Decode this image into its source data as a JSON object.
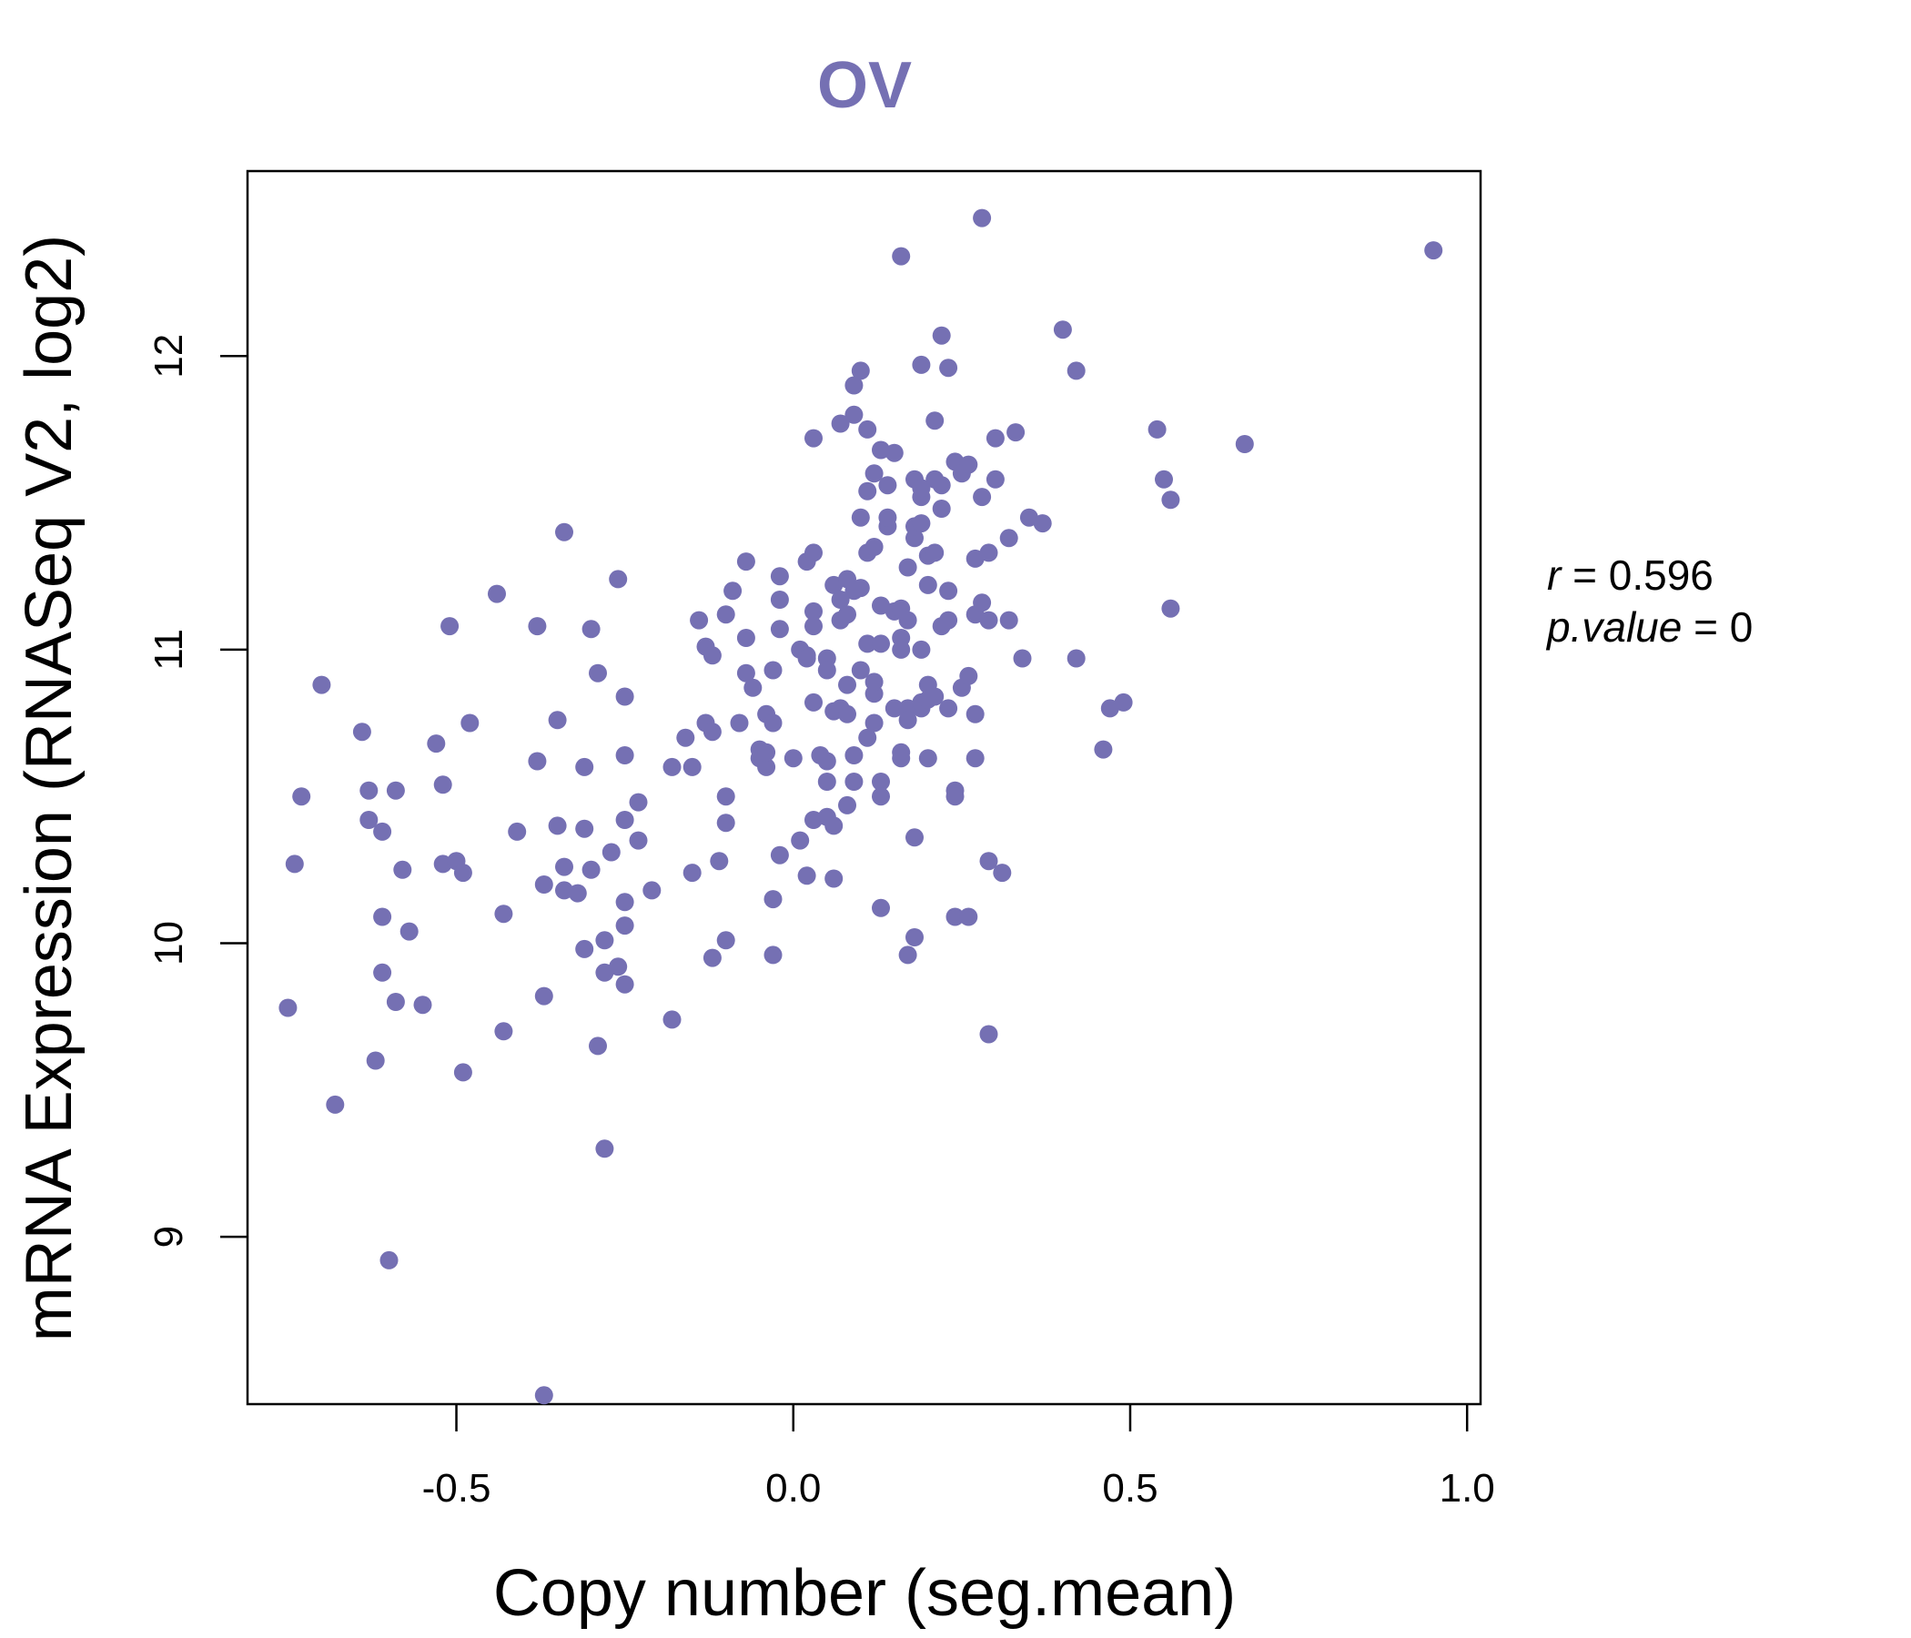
{
  "colors": {
    "accent": "#7570B3",
    "axis": "#000000",
    "background": "#ffffff"
  },
  "stats": {
    "r_label": "r",
    "r_value": "0.596",
    "p_label": "p.value",
    "p_value": "0"
  },
  "chart_data": {
    "type": "scatter",
    "title": "OV",
    "xlabel": "Copy number (seg.mean)",
    "ylabel": "mRNA Expression (RNASeq V2, log2)",
    "xlim": [
      -0.81,
      1.02
    ],
    "ylim": [
      8.43,
      12.63
    ],
    "xticks": [
      -0.5,
      0.0,
      0.5,
      1.0
    ],
    "xtick_labels": [
      "-0.5",
      "0.0",
      "0.5",
      "1.0"
    ],
    "yticks": [
      9,
      10,
      11,
      12
    ],
    "ytick_labels": [
      "9",
      "10",
      "11",
      "12"
    ],
    "grid": false,
    "legend": "none",
    "points": [
      [
        -0.75,
        9.78
      ],
      [
        -0.74,
        10.27
      ],
      [
        -0.73,
        10.5
      ],
      [
        -0.7,
        10.88
      ],
      [
        -0.68,
        9.45
      ],
      [
        -0.64,
        10.72
      ],
      [
        -0.63,
        10.52
      ],
      [
        -0.63,
        10.42
      ],
      [
        -0.62,
        9.6
      ],
      [
        -0.61,
        10.38
      ],
      [
        -0.61,
        10.09
      ],
      [
        -0.61,
        9.9
      ],
      [
        -0.6,
        8.92
      ],
      [
        -0.59,
        9.8
      ],
      [
        -0.59,
        10.52
      ],
      [
        -0.58,
        10.25
      ],
      [
        -0.57,
        10.04
      ],
      [
        -0.55,
        9.79
      ],
      [
        -0.53,
        10.68
      ],
      [
        -0.52,
        10.54
      ],
      [
        -0.52,
        10.27
      ],
      [
        -0.51,
        11.08
      ],
      [
        -0.5,
        10.28
      ],
      [
        -0.49,
        9.56
      ],
      [
        -0.49,
        10.24
      ],
      [
        -0.48,
        10.75
      ],
      [
        -0.44,
        11.19
      ],
      [
        -0.43,
        10.1
      ],
      [
        -0.43,
        9.7
      ],
      [
        -0.41,
        10.38
      ],
      [
        -0.38,
        11.08
      ],
      [
        -0.38,
        10.62
      ],
      [
        -0.37,
        10.2
      ],
      [
        -0.37,
        9.82
      ],
      [
        -0.37,
        8.46
      ],
      [
        -0.35,
        10.4
      ],
      [
        -0.35,
        10.76
      ],
      [
        -0.34,
        10.18
      ],
      [
        -0.34,
        10.26
      ],
      [
        -0.34,
        11.4
      ],
      [
        -0.32,
        10.17
      ],
      [
        -0.31,
        10.39
      ],
      [
        -0.31,
        10.6
      ],
      [
        -0.31,
        9.98
      ],
      [
        -0.3,
        11.07
      ],
      [
        -0.3,
        10.25
      ],
      [
        -0.29,
        9.65
      ],
      [
        -0.29,
        10.92
      ],
      [
        -0.28,
        9.9
      ],
      [
        -0.28,
        10.01
      ],
      [
        -0.28,
        9.3
      ],
      [
        -0.27,
        10.31
      ],
      [
        -0.26,
        11.24
      ],
      [
        -0.26,
        9.92
      ],
      [
        -0.25,
        10.64
      ],
      [
        -0.25,
        10.84
      ],
      [
        -0.25,
        10.14
      ],
      [
        -0.25,
        10.06
      ],
      [
        -0.25,
        9.86
      ],
      [
        -0.25,
        10.42
      ],
      [
        -0.23,
        10.48
      ],
      [
        -0.23,
        10.35
      ],
      [
        -0.21,
        10.18
      ],
      [
        -0.18,
        10.6
      ],
      [
        -0.18,
        9.74
      ],
      [
        -0.16,
        10.7
      ],
      [
        -0.15,
        10.24
      ],
      [
        -0.15,
        10.6
      ],
      [
        -0.14,
        11.1
      ],
      [
        -0.13,
        10.75
      ],
      [
        -0.13,
        11.01
      ],
      [
        -0.12,
        10.98
      ],
      [
        -0.12,
        10.72
      ],
      [
        -0.12,
        9.95
      ],
      [
        -0.11,
        10.28
      ],
      [
        -0.1,
        10.5
      ],
      [
        -0.1,
        10.41
      ],
      [
        -0.1,
        10.01
      ],
      [
        -0.1,
        11.12
      ],
      [
        -0.09,
        11.2
      ],
      [
        -0.08,
        10.75
      ],
      [
        -0.07,
        11.3
      ],
      [
        -0.07,
        10.92
      ],
      [
        -0.07,
        11.04
      ],
      [
        -0.06,
        10.87
      ],
      [
        -0.05,
        10.63
      ],
      [
        -0.05,
        10.66
      ],
      [
        -0.04,
        10.6
      ],
      [
        -0.04,
        10.78
      ],
      [
        -0.04,
        10.65
      ],
      [
        -0.03,
        10.93
      ],
      [
        -0.03,
        10.15
      ],
      [
        -0.03,
        10.75
      ],
      [
        -0.03,
        9.96
      ],
      [
        -0.02,
        10.3
      ],
      [
        -0.02,
        11.07
      ],
      [
        -0.02,
        11.17
      ],
      [
        -0.02,
        11.25
      ],
      [
        0.0,
        10.63
      ],
      [
        0.01,
        10.35
      ],
      [
        0.01,
        11.0
      ],
      [
        0.02,
        10.23
      ],
      [
        0.02,
        10.98
      ],
      [
        0.02,
        10.97
      ],
      [
        0.02,
        11.3
      ],
      [
        0.03,
        11.33
      ],
      [
        0.03,
        11.13
      ],
      [
        0.03,
        11.08
      ],
      [
        0.03,
        11.72
      ],
      [
        0.03,
        10.42
      ],
      [
        0.03,
        10.82
      ],
      [
        0.04,
        10.64
      ],
      [
        0.05,
        10.43
      ],
      [
        0.05,
        10.62
      ],
      [
        0.05,
        10.97
      ],
      [
        0.05,
        10.55
      ],
      [
        0.05,
        10.93
      ],
      [
        0.06,
        11.22
      ],
      [
        0.06,
        10.4
      ],
      [
        0.06,
        10.79
      ],
      [
        0.06,
        10.22
      ],
      [
        0.07,
        11.17
      ],
      [
        0.07,
        11.1
      ],
      [
        0.07,
        10.8
      ],
      [
        0.07,
        11.77
      ],
      [
        0.08,
        11.24
      ],
      [
        0.08,
        10.88
      ],
      [
        0.08,
        10.78
      ],
      [
        0.08,
        10.47
      ],
      [
        0.08,
        11.12
      ],
      [
        0.09,
        11.2
      ],
      [
        0.09,
        11.8
      ],
      [
        0.09,
        11.9
      ],
      [
        0.09,
        10.64
      ],
      [
        0.09,
        10.55
      ],
      [
        0.1,
        11.95
      ],
      [
        0.1,
        11.21
      ],
      [
        0.1,
        11.45
      ],
      [
        0.1,
        10.93
      ],
      [
        0.11,
        11.02
      ],
      [
        0.11,
        10.7
      ],
      [
        0.11,
        11.54
      ],
      [
        0.11,
        11.75
      ],
      [
        0.11,
        11.33
      ],
      [
        0.12,
        10.85
      ],
      [
        0.12,
        10.75
      ],
      [
        0.12,
        11.35
      ],
      [
        0.12,
        10.89
      ],
      [
        0.12,
        11.6
      ],
      [
        0.13,
        10.55
      ],
      [
        0.13,
        10.5
      ],
      [
        0.13,
        11.15
      ],
      [
        0.13,
        10.12
      ],
      [
        0.13,
        11.02
      ],
      [
        0.13,
        11.68
      ],
      [
        0.14,
        11.56
      ],
      [
        0.14,
        11.42
      ],
      [
        0.14,
        11.45
      ],
      [
        0.15,
        11.13
      ],
      [
        0.15,
        11.67
      ],
      [
        0.15,
        10.8
      ],
      [
        0.16,
        10.65
      ],
      [
        0.16,
        10.63
      ],
      [
        0.16,
        12.34
      ],
      [
        0.16,
        11.04
      ],
      [
        0.16,
        11.0
      ],
      [
        0.16,
        11.14
      ],
      [
        0.17,
        9.96
      ],
      [
        0.17,
        11.28
      ],
      [
        0.17,
        10.8
      ],
      [
        0.17,
        11.1
      ],
      [
        0.17,
        10.76
      ],
      [
        0.18,
        11.38
      ],
      [
        0.18,
        11.42
      ],
      [
        0.18,
        11.58
      ],
      [
        0.18,
        10.02
      ],
      [
        0.18,
        10.36
      ],
      [
        0.19,
        11.52
      ],
      [
        0.19,
        11.55
      ],
      [
        0.19,
        11.97
      ],
      [
        0.19,
        11.0
      ],
      [
        0.19,
        10.8
      ],
      [
        0.19,
        11.43
      ],
      [
        0.19,
        10.82
      ],
      [
        0.2,
        10.88
      ],
      [
        0.2,
        11.32
      ],
      [
        0.2,
        11.22
      ],
      [
        0.2,
        10.83
      ],
      [
        0.2,
        10.63
      ],
      [
        0.21,
        11.33
      ],
      [
        0.21,
        10.84
      ],
      [
        0.21,
        11.78
      ],
      [
        0.21,
        11.58
      ],
      [
        0.22,
        11.48
      ],
      [
        0.22,
        12.07
      ],
      [
        0.22,
        11.56
      ],
      [
        0.22,
        11.08
      ],
      [
        0.23,
        10.8
      ],
      [
        0.23,
        11.2
      ],
      [
        0.23,
        11.96
      ],
      [
        0.23,
        11.1
      ],
      [
        0.24,
        10.52
      ],
      [
        0.24,
        10.5
      ],
      [
        0.24,
        11.64
      ],
      [
        0.24,
        10.09
      ],
      [
        0.25,
        11.6
      ],
      [
        0.25,
        10.87
      ],
      [
        0.26,
        10.91
      ],
      [
        0.26,
        10.09
      ],
      [
        0.26,
        11.63
      ],
      [
        0.27,
        10.78
      ],
      [
        0.27,
        11.12
      ],
      [
        0.27,
        10.63
      ],
      [
        0.27,
        11.31
      ],
      [
        0.28,
        11.52
      ],
      [
        0.28,
        11.16
      ],
      [
        0.28,
        12.47
      ],
      [
        0.29,
        10.28
      ],
      [
        0.29,
        9.69
      ],
      [
        0.29,
        11.33
      ],
      [
        0.29,
        11.1
      ],
      [
        0.3,
        11.72
      ],
      [
        0.3,
        11.58
      ],
      [
        0.31,
        10.24
      ],
      [
        0.32,
        11.1
      ],
      [
        0.32,
        11.38
      ],
      [
        0.33,
        11.74
      ],
      [
        0.34,
        10.97
      ],
      [
        0.35,
        11.45
      ],
      [
        0.37,
        11.43
      ],
      [
        0.4,
        12.09
      ],
      [
        0.42,
        11.95
      ],
      [
        0.42,
        10.97
      ],
      [
        0.46,
        10.66
      ],
      [
        0.47,
        10.8
      ],
      [
        0.49,
        10.82
      ],
      [
        0.54,
        11.75
      ],
      [
        0.55,
        11.58
      ],
      [
        0.56,
        11.51
      ],
      [
        0.56,
        11.14
      ],
      [
        0.67,
        11.7
      ],
      [
        0.95,
        12.36
      ]
    ]
  }
}
